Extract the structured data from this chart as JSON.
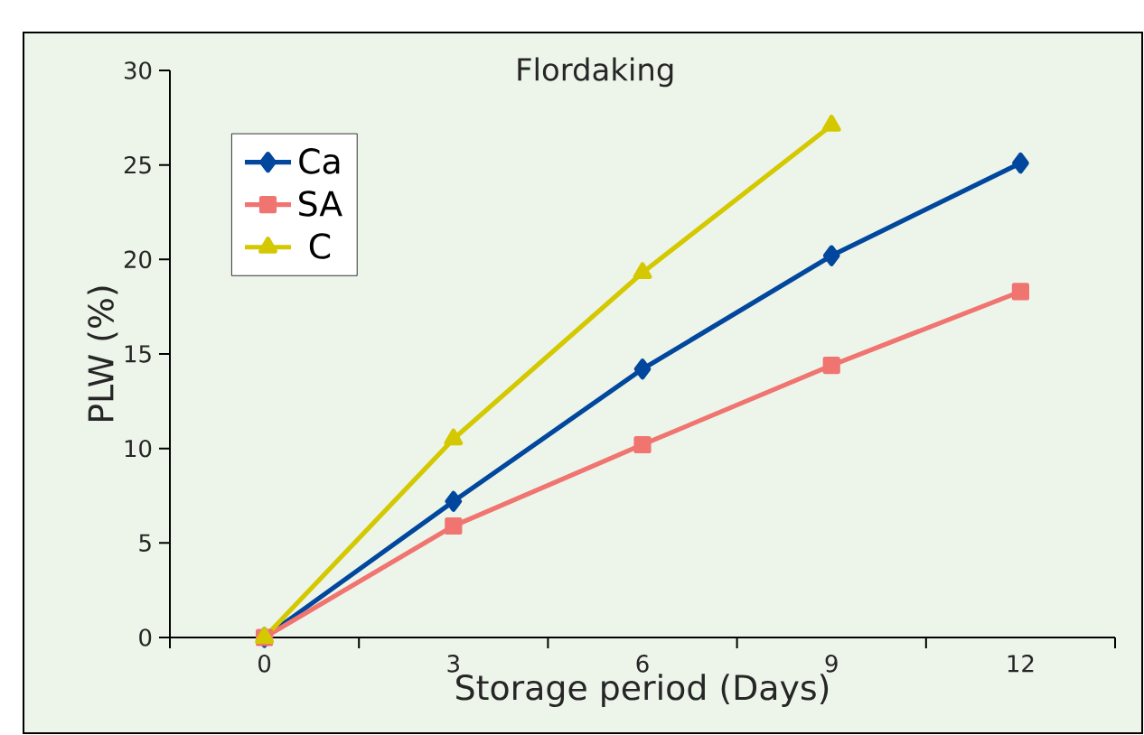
{
  "chart_data": {
    "type": "line",
    "title": "Flordaking",
    "xlabel": "Storage period (Days)",
    "ylabel": "PLW (%)",
    "categories": [
      "0",
      "3",
      "6",
      "9",
      "12"
    ],
    "series": [
      {
        "name": "Ca",
        "color": "#00479d",
        "marker": "diamond",
        "values": [
          0,
          7.2,
          14.2,
          20.2,
          25.1
        ]
      },
      {
        "name": "SA",
        "color": "#f07470",
        "marker": "square",
        "values": [
          0,
          5.9,
          10.2,
          14.4,
          18.3
        ]
      },
      {
        "name": "C",
        "color": "#d4c800",
        "marker": "triangle",
        "values": [
          0,
          10.5,
          19.3,
          27.1,
          null
        ]
      }
    ],
    "ylim": [
      0,
      30
    ],
    "yticks": [
      0,
      5,
      10,
      15,
      20,
      25,
      30
    ],
    "grid": false,
    "legend": "top left",
    "line_style": "solid"
  }
}
